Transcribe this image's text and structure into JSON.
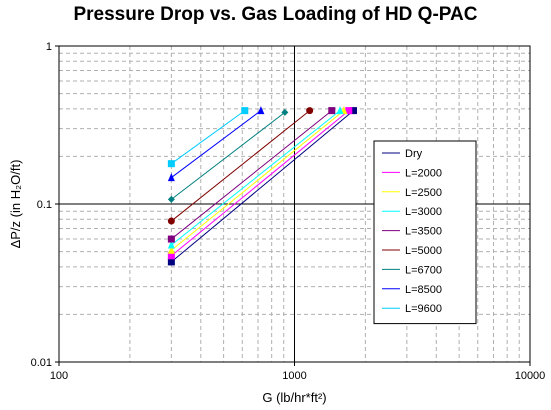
{
  "chart_data": {
    "type": "line",
    "title": "Pressure Drop vs. Gas Loading of HD Q-PAC",
    "xlabel": "G (lb/hr*ft²)",
    "ylabel": "ΔP/z (in H₂O/ft)",
    "xscale": "log",
    "yscale": "log",
    "xlim": [
      100,
      10000
    ],
    "ylim": [
      0.01,
      1
    ],
    "x_ticks": [
      "100",
      "1000",
      "10000"
    ],
    "y_ticks": [
      "0.01",
      "0.1",
      "1"
    ],
    "grid": true,
    "legend_position": "right",
    "series": [
      {
        "name": "Dry",
        "color": "#000080",
        "marker": "square",
        "x": [
          300,
          1780
        ],
        "y": [
          0.043,
          0.39
        ]
      },
      {
        "name": "L=2000",
        "color": "#FF00FF",
        "marker": "square",
        "x": [
          300,
          1700
        ],
        "y": [
          0.047,
          0.39
        ]
      },
      {
        "name": "L=2500",
        "color": "#FFFF00",
        "marker": "triangle",
        "x": [
          300,
          1620
        ],
        "y": [
          0.051,
          0.39
        ]
      },
      {
        "name": "L=3000",
        "color": "#00FFFF",
        "marker": "triangle",
        "x": [
          300,
          1560
        ],
        "y": [
          0.055,
          0.39
        ]
      },
      {
        "name": "L=3500",
        "color": "#800080",
        "marker": "square",
        "x": [
          300,
          1440
        ],
        "y": [
          0.06,
          0.39
        ]
      },
      {
        "name": "L=5000",
        "color": "#800000",
        "marker": "circle",
        "x": [
          300,
          1160
        ],
        "y": [
          0.078,
          0.39
        ]
      },
      {
        "name": "L=6700",
        "color": "#008080",
        "marker": "diamond",
        "x": [
          300,
          910
        ],
        "y": [
          0.107,
          0.38
        ]
      },
      {
        "name": "L=8500",
        "color": "#0000FF",
        "marker": "triangle",
        "x": [
          300,
          720
        ],
        "y": [
          0.147,
          0.39
        ]
      },
      {
        "name": "L=9600",
        "color": "#00CCFF",
        "marker": "square",
        "x": [
          300,
          615
        ],
        "y": [
          0.18,
          0.39
        ]
      }
    ]
  }
}
